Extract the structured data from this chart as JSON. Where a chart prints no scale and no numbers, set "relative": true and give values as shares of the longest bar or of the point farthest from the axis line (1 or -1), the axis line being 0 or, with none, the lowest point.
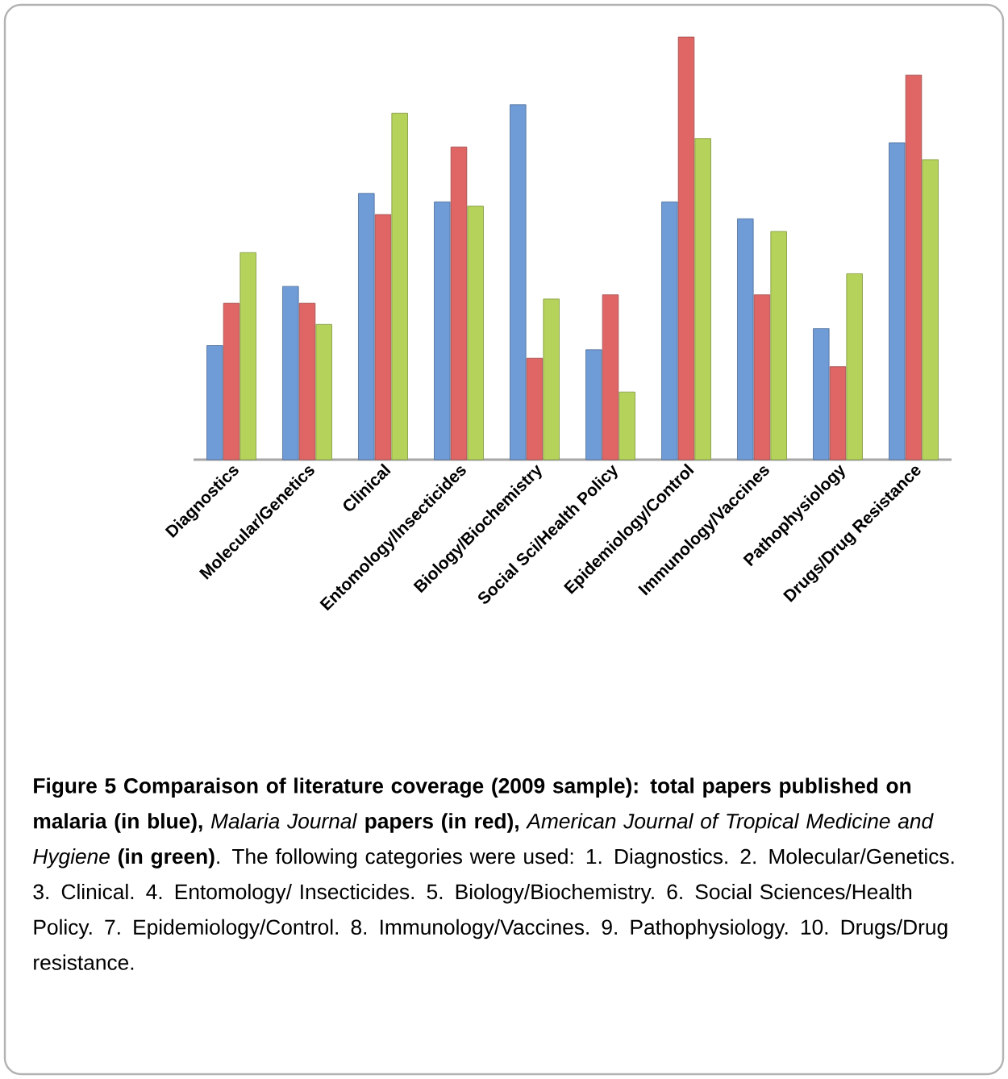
{
  "chart_data": {
    "type": "bar",
    "relative": true,
    "categories": [
      "Diagnostics",
      "Molecular/Genetics",
      "Clinical",
      "Entomology/Insecticides",
      "Biology/Biochemistry",
      "Social Sci/Health Policy",
      "Epidemiology/Control",
      "Immunology/Vaccines",
      "Pathophysiology",
      "Drugs/Drug Resistance"
    ],
    "series": [
      {
        "color": "#6f9bd6",
        "values": [
          0.27,
          0.41,
          0.63,
          0.61,
          0.84,
          0.26,
          0.61,
          0.57,
          0.31,
          0.75
        ]
      },
      {
        "color": "#e06666",
        "values": [
          0.37,
          0.37,
          0.58,
          0.74,
          0.24,
          0.39,
          1.0,
          0.39,
          0.22,
          0.91
        ]
      },
      {
        "color": "#b5d35a",
        "values": [
          0.49,
          0.32,
          0.82,
          0.6,
          0.38,
          0.16,
          0.76,
          0.54,
          0.44,
          0.71
        ]
      }
    ],
    "annotations": [
      "**Figure 5 Comparaison of literature coverage (2009 sample): total papers published on malaria (in blue),** *Malaria Journal* **papers (in red),** *American Journal of Tropical Medicine and Hygiene* **(in green)**. The following categories were used: 1. Diagnostics. 2. Molecular/Genetics. 3. Clinical. 4. Entomology/ Insecticides. 5. Biology/Biochemistry. 6. Social Sciences/Health Policy. 7. Epidemiology/Control. 8. Immunology/Vaccines. 9. Pathophysiology. 10. Drugs/Drug resistance."
    ]
  }
}
